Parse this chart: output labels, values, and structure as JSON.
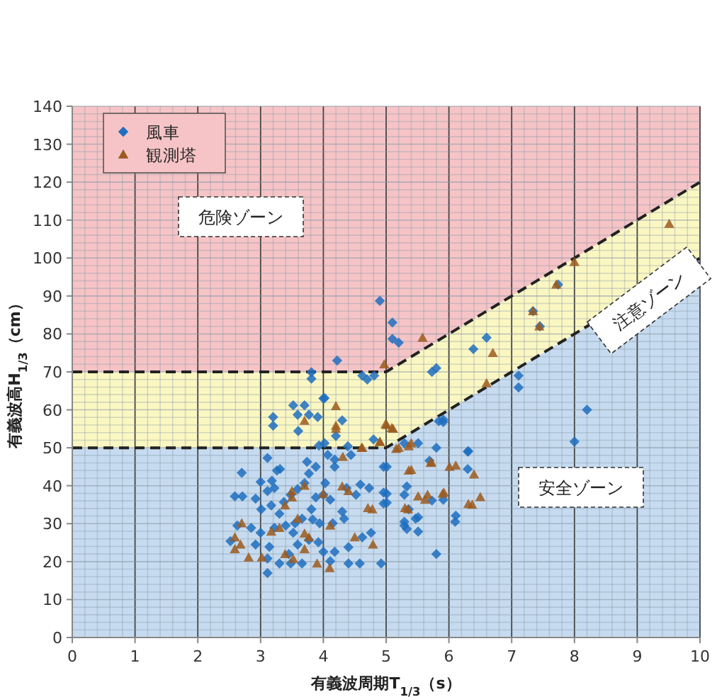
{
  "chart_data": {
    "type": "scatter",
    "xlabel": "有義波周期T$_{1/3}$（s）",
    "ylabel": "有義波高H$_{1/3}$（cm）",
    "xlim": [
      0,
      10
    ],
    "xticks": [
      0,
      1,
      2,
      3,
      4,
      5,
      6,
      7,
      8,
      9,
      10
    ],
    "ylim": [
      0,
      140
    ],
    "yticks": [
      0,
      10,
      20,
      30,
      40,
      50,
      60,
      70,
      80,
      90,
      100,
      110,
      120,
      130,
      140
    ],
    "grid": true,
    "legend": "top left",
    "stacked": true,
    "annotations": [
      "危険ゾーン",
      "注意ゾーン",
      "安全ゾーン"
    ],
    "series": [
      {
        "type": "area",
        "color": "#c6dbef",
        "line_style": "dashed",
        "x": [
          0,
          5,
          10
        ],
        "values": [
          50,
          50,
          100
        ]
      },
      {
        "type": "area",
        "color": "#fbf7c2",
        "line_style": "dashed",
        "x": [
          0,
          5,
          10
        ],
        "values": [
          20,
          20,
          20
        ]
      },
      {
        "type": "area",
        "color": "#f6c4c6",
        "x": [
          0,
          5,
          10
        ],
        "values": [
          70,
          70,
          20
        ]
      },
      {
        "name": "風車",
        "color": "#1f6fc0",
        "marker": "diamond",
        "x": [
          3.11,
          2.7,
          3.0,
          3.18,
          3.26,
          3.31,
          2.59,
          2.71,
          2.92,
          3.11,
          3.22,
          3.01,
          3.17,
          3.37,
          3.48,
          3.59,
          3.7,
          3.74,
          3.88,
          3.77,
          4.03,
          4.0,
          3.88,
          3.81,
          4.11,
          4.18,
          4.18,
          4.07,
          4.44,
          4.37,
          4.59,
          4.73,
          4.96,
          4.96,
          4.96,
          4.52,
          4.3,
          4.33,
          4.15,
          3.94,
          3.83,
          3.66,
          3.55,
          3.4,
          3.3,
          3.22,
          3.0,
          2.85,
          2.63,
          2.52,
          2.92,
          3.14,
          3.11,
          3.11,
          3.3,
          3.48,
          3.59,
          3.77,
          3.92,
          4.0,
          4.11,
          4.18,
          4.4,
          4.58,
          4.62,
          4.76,
          4.92,
          4.4,
          3.66,
          3.52,
          3.45,
          5.29,
          5.36,
          5.47,
          5.29,
          5.51,
          5.8,
          5.91,
          5.8,
          5.91,
          6.3,
          6.3,
          6.1,
          5.29,
          5.51,
          7.11,
          7.11,
          8.2,
          8.0,
          6.31,
          6.11,
          5.84,
          5.91,
          5.01,
          5.01,
          5.01,
          5.69,
          5.33,
          5.29,
          5.51,
          5.33,
          5.73,
          4.9,
          5.1,
          5.1,
          5.2,
          4.22,
          3.81,
          3.81,
          4.62,
          4.7,
          4.81,
          5.73,
          5.8,
          6.39,
          6.6,
          7.34,
          7.45,
          7.74,
          4.0,
          3.2,
          3.2,
          3.52,
          3.7,
          3.59,
          3.77,
          3.6,
          3.91,
          4.02,
          4.3,
          4.2,
          4.02,
          3.93,
          4.39,
          4.8
        ],
        "values": [
          47.3,
          43.4,
          41.0,
          41.3,
          44.0,
          44.4,
          37.2,
          37.2,
          36.6,
          38.6,
          39.4,
          33.8,
          34.8,
          35.7,
          37.6,
          39.1,
          40.7,
          46.3,
          45.0,
          43.2,
          40.7,
          37.6,
          36.9,
          33.8,
          36.3,
          45.0,
          46.9,
          48.1,
          48.1,
          39.4,
          40.3,
          39.4,
          45.0,
          38.2,
          35.3,
          37.6,
          33.2,
          31.3,
          30.1,
          30.1,
          31.1,
          31.3,
          30.1,
          29.5,
          32.6,
          28.9,
          27.6,
          28.9,
          29.5,
          25.4,
          24.5,
          23.9,
          20.8,
          17.0,
          19.5,
          19.5,
          24.5,
          25.7,
          25.1,
          22.6,
          20.1,
          22.6,
          19.5,
          19.5,
          26.4,
          27.6,
          19.5,
          23.8,
          19.5,
          27.6,
          22.0,
          37.6,
          33.8,
          31.3,
          29.5,
          27.9,
          50.0,
          56.8,
          22.0,
          36.3,
          49.0,
          44.4,
          30.5,
          51.2,
          51.2,
          69.0,
          65.9,
          60.0,
          51.6,
          49.1,
          32.1,
          57.0,
          57.4,
          45.0,
          37.9,
          35.5,
          46.6,
          39.8,
          30.5,
          31.7,
          28.6,
          36.1,
          88.7,
          83.0,
          78.7,
          77.7,
          73.0,
          69.9,
          68.2,
          69.0,
          68.0,
          69.0,
          70.0,
          71.0,
          76.0,
          79.0,
          86.0,
          82.0,
          93.0,
          63.0,
          58.1,
          55.8,
          61.2,
          61.2,
          58.7,
          58.7,
          54.4,
          58.1,
          63.1,
          57.2,
          53.1,
          51.2,
          50.6,
          50.4,
          52.2
        ]
      },
      {
        "name": "観測塔",
        "color": "#9c5a1e",
        "marker": "triangle",
        "x": [
          4.97,
          5.58,
          6.7,
          6.6,
          7.34,
          7.44,
          7.71,
          8.0,
          9.51,
          5.01,
          5.11,
          4.9,
          4.62,
          5.16,
          5.36,
          4.31,
          5.72,
          5.36,
          6.01,
          6.4,
          5.9,
          6.5,
          6.31,
          5.66,
          5.35,
          3.7,
          4.2,
          4.2,
          4.2,
          4.99,
          5.09,
          4.9,
          4.61,
          5.2,
          5.4,
          5.4,
          5.71,
          6.11,
          5.51,
          5.62,
          5.92,
          5.3,
          4.78,
          4.71,
          4.4,
          4.3,
          4.0,
          3.7,
          3.5,
          3.5,
          3.39,
          3.59,
          2.7,
          2.59,
          2.59,
          2.68,
          3.17,
          3.3,
          3.7,
          3.77,
          4.11,
          4.5,
          4.79,
          2.81,
          3.02,
          3.39,
          3.52,
          3.7,
          3.9,
          4.1,
          6.37
        ],
        "values": [
          72,
          79,
          75,
          67,
          86,
          82,
          93,
          99,
          109,
          56.0,
          55.0,
          51.6,
          50.0,
          49.7,
          50.4,
          47.6,
          46.2,
          44.0,
          45.0,
          43.0,
          37.9,
          37.0,
          35.2,
          37.6,
          33.8,
          57.1,
          61.0,
          55.8,
          55.0,
          56.2,
          55.2,
          51.5,
          50.0,
          50.0,
          51.2,
          44.2,
          46.0,
          45.3,
          37.2,
          36.3,
          38.2,
          34.1,
          33.8,
          34.1,
          38.6,
          39.8,
          37.8,
          40.0,
          38.6,
          36.9,
          34.8,
          31.3,
          30.1,
          26.4,
          23.3,
          24.5,
          27.9,
          28.9,
          27.4,
          26.4,
          29.5,
          26.4,
          24.5,
          21.1,
          21.1,
          22.0,
          20.7,
          23.3,
          19.5,
          18.3,
          35.0
        ]
      }
    ]
  }
}
